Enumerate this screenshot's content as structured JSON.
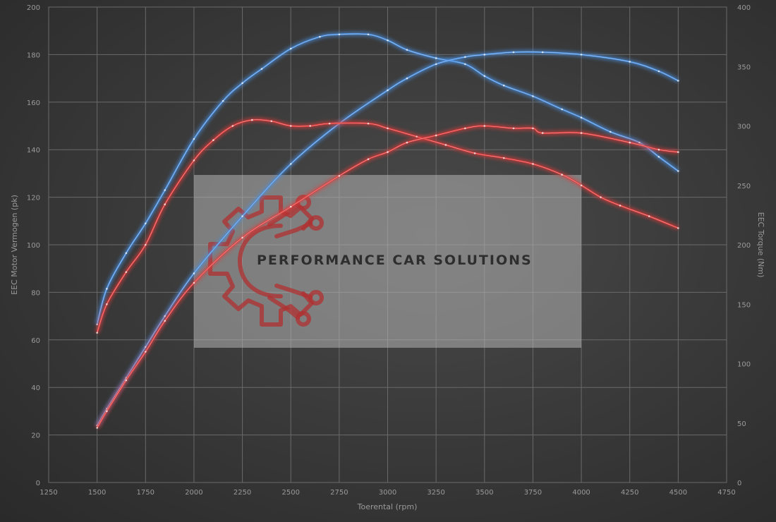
{
  "chart_data": {
    "type": "line",
    "xlabel": "Toerental (rpm)",
    "ylabel_left": "EEC Motor Vermogen (pk)",
    "ylabel_right": "EEC Torque (Nm)",
    "xlim": [
      1250,
      4750
    ],
    "ylim_left": [
      0,
      200
    ],
    "ylim_right": [
      0,
      400
    ],
    "x_ticks": [
      1250,
      1500,
      1750,
      2000,
      2250,
      2500,
      2750,
      3000,
      3250,
      3500,
      3750,
      4000,
      4250,
      4500,
      4750
    ],
    "y_ticks_left": [
      0,
      20,
      40,
      60,
      80,
      100,
      120,
      140,
      160,
      180,
      200
    ],
    "y_ticks_right": [
      0,
      50,
      100,
      150,
      200,
      250,
      300,
      350,
      400
    ],
    "grid": true,
    "series": [
      {
        "axis": "right",
        "color": "#4a8fe0",
        "x": [
          1500,
          1550,
          1650,
          1750,
          1850,
          2000,
          2150,
          2250,
          2350,
          2500,
          2650,
          2750,
          2900,
          3000,
          3100,
          3250,
          3400,
          3500,
          3600,
          3750,
          3900,
          4000,
          4150,
          4300,
          4400,
          4500
        ],
        "values": [
          133,
          163,
          193,
          218,
          246,
          289,
          321,
          336,
          348,
          365,
          375,
          377,
          377,
          372,
          364,
          357,
          352,
          342,
          334,
          325,
          314,
          307,
          295,
          286,
          274,
          262
        ]
      },
      {
        "axis": "left",
        "color": "#4a8fe0",
        "x": [
          1500,
          1550,
          1650,
          1750,
          1850,
          2000,
          2250,
          2500,
          2750,
          3000,
          3100,
          3250,
          3400,
          3500,
          3650,
          3800,
          4000,
          4250,
          4400,
          4500
        ],
        "values": [
          24,
          31,
          44,
          57,
          70,
          88,
          112,
          134,
          151,
          165,
          170,
          176,
          179,
          180,
          181,
          181,
          180,
          177,
          173,
          169
        ]
      },
      {
        "axis": "right",
        "color": "#e03a3a",
        "x": [
          1500,
          1550,
          1650,
          1750,
          1850,
          2000,
          2100,
          2200,
          2300,
          2400,
          2500,
          2600,
          2700,
          2900,
          3000,
          3150,
          3300,
          3450,
          3600,
          3750,
          3900,
          4000,
          4100,
          4200,
          4350,
          4500
        ],
        "values": [
          126,
          150,
          177,
          200,
          234,
          271,
          288,
          300,
          305,
          304,
          300,
          300,
          302,
          302,
          298,
          291,
          284,
          277,
          273,
          268,
          259,
          250,
          240,
          233,
          224,
          214
        ]
      },
      {
        "axis": "left",
        "color": "#e03a3a",
        "x": [
          1500,
          1550,
          1650,
          1750,
          1850,
          2000,
          2250,
          2500,
          2750,
          2900,
          3000,
          3100,
          3250,
          3400,
          3500,
          3650,
          3750,
          3800,
          4000,
          4250,
          4400,
          4500
        ],
        "values": [
          23,
          30,
          43,
          55,
          68,
          84,
          103,
          116,
          129,
          136,
          139,
          143,
          146,
          149,
          150,
          149,
          149,
          147,
          147,
          143,
          140,
          139
        ]
      }
    ]
  },
  "watermark": {
    "text": "PERFORMANCE CAR SOLUTIONS"
  }
}
